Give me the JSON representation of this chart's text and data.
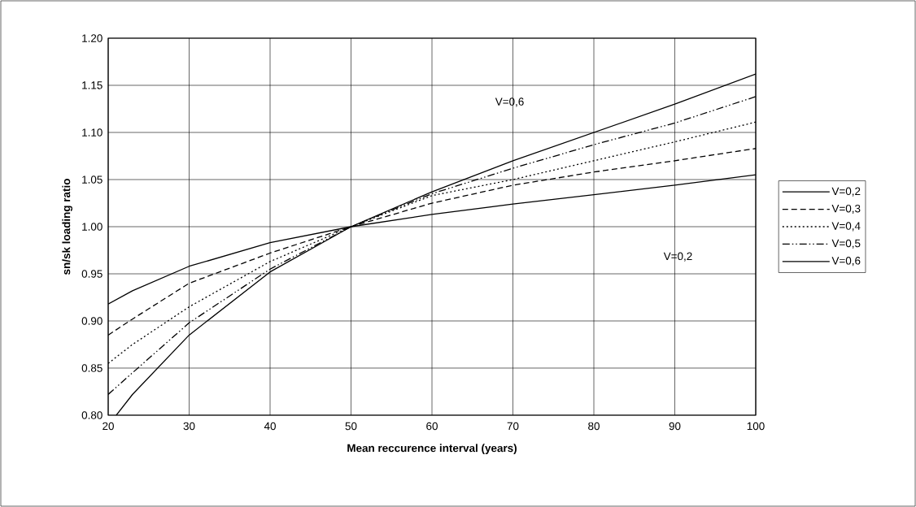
{
  "chart_data": {
    "type": "line",
    "xlabel": "Mean reccurence interval (years)",
    "ylabel": "sn/sk loading ratio",
    "x": [
      20,
      23,
      30,
      40,
      50,
      60,
      70,
      80,
      90,
      100
    ],
    "series": [
      {
        "name": "V=0,2",
        "color": "#000000",
        "line_style": "solid",
        "values": [
          0.918,
          0.932,
          0.958,
          0.983,
          1.0,
          1.013,
          1.024,
          1.034,
          1.044,
          1.055
        ]
      },
      {
        "name": "V=0,3",
        "color": "#000000",
        "line_style": "dashed",
        "values": [
          0.885,
          0.902,
          0.94,
          0.972,
          1.0,
          1.025,
          1.044,
          1.058,
          1.07,
          1.083
        ]
      },
      {
        "name": "V=0,4",
        "color": "#000000",
        "line_style": "dotted",
        "values": [
          0.855,
          0.875,
          0.915,
          0.963,
          1.0,
          1.033,
          1.05,
          1.07,
          1.09,
          1.111
        ]
      },
      {
        "name": "V=0,5",
        "color": "#000000",
        "line_style": "dashdotdot",
        "values": [
          0.822,
          0.845,
          0.898,
          0.955,
          1.0,
          1.035,
          1.062,
          1.087,
          1.11,
          1.138
        ]
      },
      {
        "name": "V=0,6",
        "color": "#000000",
        "line_style": "solid",
        "x": [
          21,
          23,
          30,
          40,
          50,
          60,
          70,
          80,
          90,
          100
        ],
        "values": [
          0.8,
          0.822,
          0.885,
          0.952,
          1.0,
          1.037,
          1.07,
          1.1,
          1.13,
          1.162
        ]
      }
    ],
    "annotations": [
      "V=0,6",
      "V=0,2"
    ],
    "xlim": [
      20,
      100
    ],
    "xticks": [
      20,
      30,
      40,
      50,
      60,
      70,
      80,
      90,
      100
    ],
    "ylim": [
      0.8,
      1.2
    ],
    "yticks": [
      {
        "value": 0.8,
        "label": "0.80"
      },
      {
        "value": 0.85,
        "label": "0.85"
      },
      {
        "value": 0.9,
        "label": "0.90"
      },
      {
        "value": 0.95,
        "label": "0.95"
      },
      {
        "value": 1.0,
        "label": "1.00"
      },
      {
        "value": 1.05,
        "label": "1.05"
      },
      {
        "value": 1.1,
        "label": "1.10"
      },
      {
        "value": 1.15,
        "label": "1.15"
      },
      {
        "value": 1.2,
        "label": "1.20"
      }
    ],
    "grid": true,
    "legend": "right",
    "marker": "none"
  }
}
